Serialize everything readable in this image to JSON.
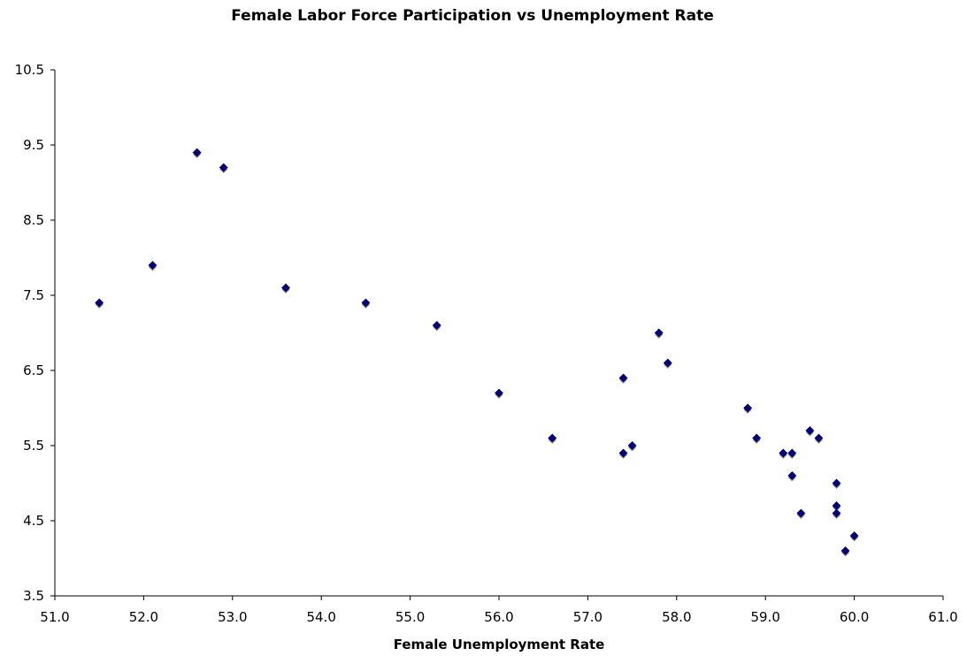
{
  "chart_data": {
    "type": "scatter",
    "title": "Female Labor Force Participation vs Unemployment Rate",
    "xlabel": "Female Unemployment Rate",
    "ylabel": "",
    "xlim": [
      51.0,
      61.0
    ],
    "ylim": [
      3.5,
      10.5
    ],
    "x_ticks": [
      "51.0",
      "52.0",
      "53.0",
      "54.0",
      "55.0",
      "56.0",
      "57.0",
      "58.0",
      "59.0",
      "60.0",
      "61.0"
    ],
    "y_ticks": [
      "3.5",
      "4.5",
      "5.5",
      "6.5",
      "7.5",
      "8.5",
      "9.5",
      "10.5"
    ],
    "grid": false,
    "legend": "none",
    "marker": "diamond",
    "marker_color": "#000080",
    "points": [
      {
        "x": 51.5,
        "y": 7.4
      },
      {
        "x": 52.1,
        "y": 7.9
      },
      {
        "x": 52.6,
        "y": 9.4
      },
      {
        "x": 52.9,
        "y": 9.2
      },
      {
        "x": 53.6,
        "y": 7.6
      },
      {
        "x": 54.5,
        "y": 7.4
      },
      {
        "x": 55.3,
        "y": 7.1
      },
      {
        "x": 56.0,
        "y": 6.2
      },
      {
        "x": 56.6,
        "y": 5.6
      },
      {
        "x": 57.4,
        "y": 6.4
      },
      {
        "x": 57.4,
        "y": 5.4
      },
      {
        "x": 57.5,
        "y": 5.5
      },
      {
        "x": 57.8,
        "y": 7.0
      },
      {
        "x": 57.9,
        "y": 6.6
      },
      {
        "x": 58.8,
        "y": 6.0
      },
      {
        "x": 58.9,
        "y": 5.6
      },
      {
        "x": 59.2,
        "y": 5.4
      },
      {
        "x": 59.3,
        "y": 5.4
      },
      {
        "x": 59.3,
        "y": 5.1
      },
      {
        "x": 59.4,
        "y": 4.6
      },
      {
        "x": 59.5,
        "y": 5.7
      },
      {
        "x": 59.6,
        "y": 5.6
      },
      {
        "x": 59.8,
        "y": 5.0
      },
      {
        "x": 59.8,
        "y": 4.7
      },
      {
        "x": 59.8,
        "y": 4.6
      },
      {
        "x": 59.9,
        "y": 4.1
      },
      {
        "x": 60.0,
        "y": 4.3
      }
    ]
  }
}
